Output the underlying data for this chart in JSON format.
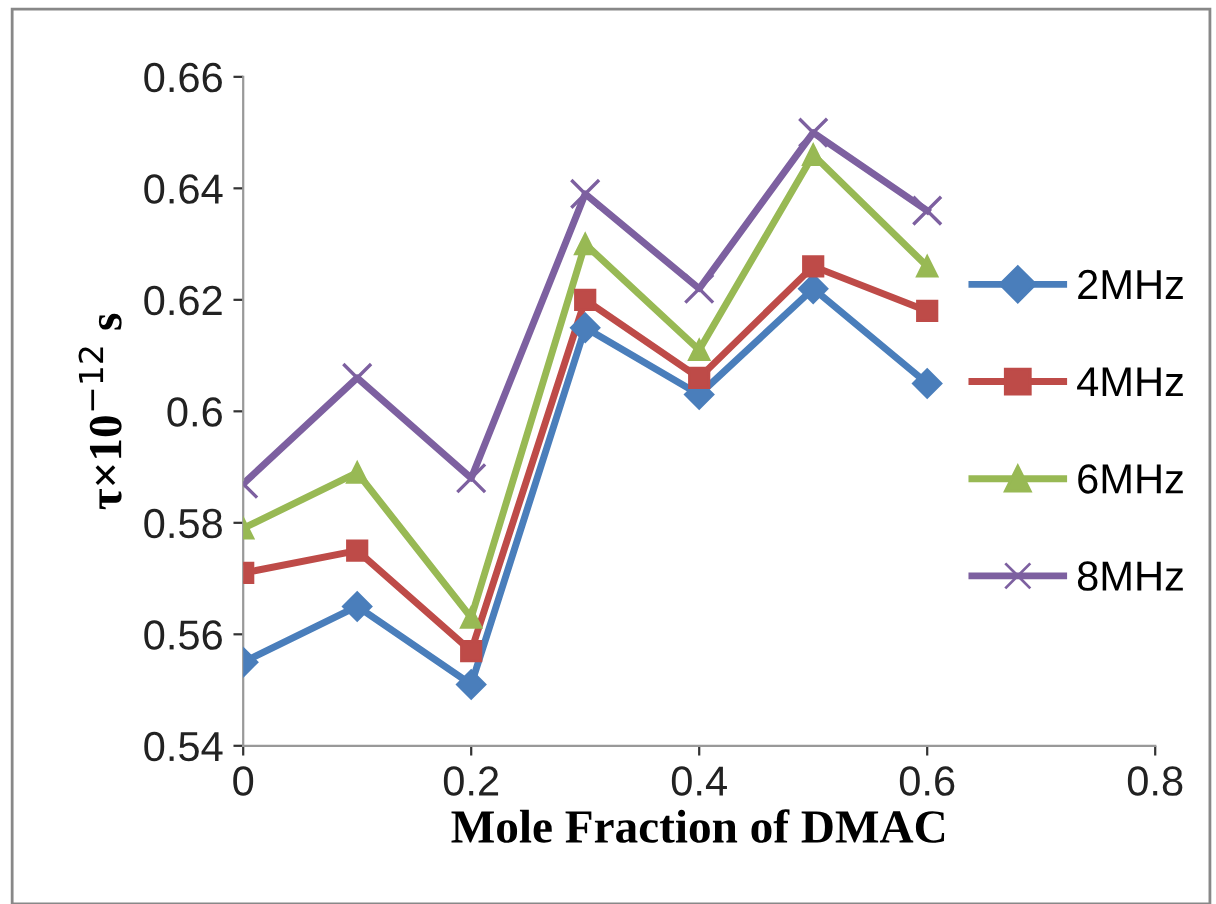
{
  "chart_data": {
    "type": "line",
    "x": [
      0,
      0.1,
      0.2,
      0.3,
      0.4,
      0.5,
      0.6
    ],
    "xlabel": "Mole Fraction of DMAC",
    "ylabel": "τ×10$^{−12}$ s",
    "xlim": [
      0,
      0.8
    ],
    "xticks": [
      0,
      0.2,
      0.4,
      0.6,
      0.8
    ],
    "ylim": [
      0.54,
      0.66
    ],
    "yticks": [
      0.54,
      0.56,
      0.58,
      0.6,
      0.62,
      0.64,
      0.66
    ],
    "grid": false,
    "legend": "right",
    "series": [
      {
        "name": "2MHz",
        "color": "#4a7ebb",
        "marker": "diamond",
        "values": [
          0.555,
          0.565,
          0.551,
          0.615,
          0.603,
          0.622,
          0.605
        ]
      },
      {
        "name": "4MHz",
        "color": "#be4b48",
        "marker": "square",
        "values": [
          0.571,
          0.575,
          0.557,
          0.62,
          0.606,
          0.626,
          0.618
        ]
      },
      {
        "name": "6MHz",
        "color": "#98b954",
        "marker": "triangle",
        "values": [
          0.579,
          0.589,
          0.563,
          0.63,
          0.611,
          0.646,
          0.626
        ]
      },
      {
        "name": "8MHz",
        "color": "#7d60a0",
        "marker": "cross",
        "values": [
          0.587,
          0.606,
          0.588,
          0.639,
          0.622,
          0.65,
          0.636
        ]
      }
    ]
  }
}
